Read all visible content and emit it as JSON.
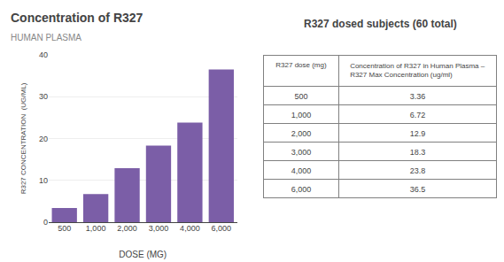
{
  "chart_data": [
    {
      "type": "bar",
      "title": "Concentration of R327",
      "subtitle": "HUMAN PLASMA",
      "categories": [
        "500",
        "1,000",
        "2,000",
        "3,000",
        "4,000",
        "6,000"
      ],
      "values": [
        3.36,
        6.72,
        12.9,
        18.3,
        23.8,
        36.5
      ],
      "color": "#7B5EA7",
      "xlabel": "DOSE (MG)",
      "ylabel": "R327 CONCENTRATION  (UG/ML)",
      "ylim": [
        0,
        40
      ],
      "yticks": [
        0,
        10,
        20,
        30,
        40
      ],
      "grid": true
    },
    {
      "type": "table",
      "title": "R327 dosed subjects (60 total)",
      "columns": [
        "R327 dose (mg)",
        "Concentration of R327 in Human Plasma –\nR327 Max Concentration (ug/ml)"
      ],
      "rows": [
        [
          "500",
          "3.36"
        ],
        [
          "1,000",
          "6.72"
        ],
        [
          "2,000",
          "12.9"
        ],
        [
          "3,000",
          "18.3"
        ],
        [
          "4,000",
          "23.8"
        ],
        [
          "6,000",
          "36.5"
        ]
      ]
    }
  ]
}
